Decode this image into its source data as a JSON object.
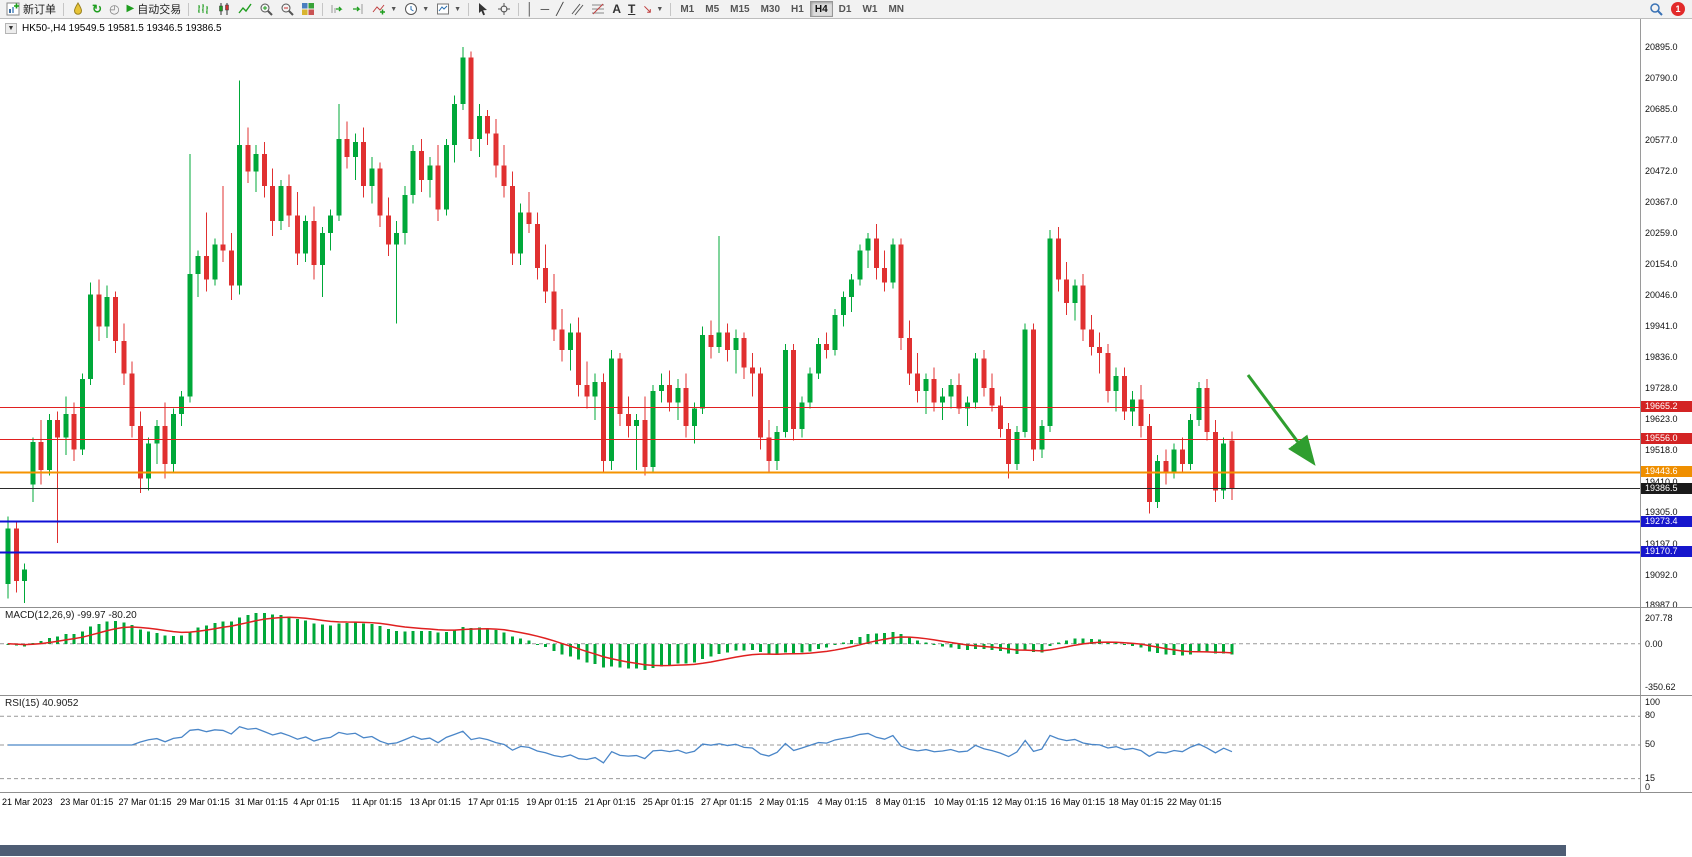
{
  "toolbar": {
    "new_order_label": "新订单",
    "autotrading_label": "自动交易",
    "timeframes": [
      "M1",
      "M5",
      "M15",
      "M30",
      "H1",
      "H4",
      "D1",
      "W1",
      "MN"
    ],
    "active_timeframe": "H4",
    "notification_count": "1"
  },
  "chart": {
    "symbol_ohlc": "HK50-,H4  19549.5 19581.5 19346.5 19386.5",
    "up_color": "#00a839",
    "down_color": "#e03030",
    "price_tags": [
      {
        "text": "19665.2",
        "value": 19665.2,
        "bg": "#d32424"
      },
      {
        "text": "19556.0",
        "value": 19556.0,
        "bg": "#d32424"
      },
      {
        "text": "19443.6",
        "value": 19443.6,
        "bg": "#ef8f00"
      },
      {
        "text": "19386.5",
        "value": 19386.5,
        "bg": "#1a1a1a"
      },
      {
        "text": "19273.4",
        "value": 19273.4,
        "bg": "#1616cc"
      },
      {
        "text": "19170.7",
        "value": 19170.7,
        "bg": "#1616cc"
      }
    ],
    "h_lines": [
      {
        "value": 19665.2,
        "color": "#e02020",
        "width": 1
      },
      {
        "value": 19556.0,
        "color": "#e02020",
        "width": 1
      },
      {
        "value": 19443.6,
        "color": "#f59300",
        "width": 2
      },
      {
        "value": 19386.5,
        "color": "#2a2a2a",
        "width": 1
      },
      {
        "value": 19273.4,
        "color": "#0f0fd6",
        "width": 2
      },
      {
        "value": 19170.7,
        "color": "#0f0fd6",
        "width": 2
      }
    ],
    "annotation_arrow": {
      "color": "#2f9e2f"
    }
  },
  "chart_data": {
    "type": "candlestick",
    "symbol": "HK50-",
    "timeframe": "H4",
    "current_ohlc": {
      "open": 19549.5,
      "high": 19581.5,
      "low": 19346.5,
      "close": 19386.5
    },
    "y_range": [
      18981,
      20991
    ],
    "y_ticks": [
      "20895.0",
      "20790.0",
      "20685.0",
      "20577.0",
      "20472.0",
      "20367.0",
      "20259.0",
      "20154.0",
      "20046.0",
      "19941.0",
      "19836.0",
      "19728.0",
      "19623.0",
      "19518.0",
      "19410.0",
      "19305.0",
      "19197.0",
      "19092.0",
      "18987.0"
    ],
    "x_labels": [
      "21 Mar 2023",
      "23 Mar 01:15",
      "27 Mar 01:15",
      "29 Mar 01:15",
      "31 Mar 01:15",
      "4 Apr 01:15",
      "11 Apr 01:15",
      "13 Apr 01:15",
      "17 Apr 01:15",
      "19 Apr 01:15",
      "21 Apr 01:15",
      "25 Apr 01:15",
      "27 Apr 01:15",
      "2 May 01:15",
      "4 May 01:15",
      "8 May 01:15",
      "10 May 01:15",
      "12 May 01:15",
      "16 May 01:15",
      "18 May 01:15",
      "22 May 01:15"
    ],
    "candles": [
      [
        19060,
        19290,
        19010,
        19250
      ],
      [
        19250,
        19270,
        19030,
        19070
      ],
      [
        19070,
        19130,
        18995,
        19110
      ],
      [
        19400,
        19560,
        19340,
        19545
      ],
      [
        19545,
        19620,
        19400,
        19450
      ],
      [
        19450,
        19640,
        19430,
        19620
      ],
      [
        19620,
        19650,
        19200,
        19560
      ],
      [
        19560,
        19700,
        19500,
        19640
      ],
      [
        19640,
        19680,
        19480,
        19520
      ],
      [
        19520,
        19780,
        19500,
        19760
      ],
      [
        19760,
        20090,
        19740,
        20050
      ],
      [
        20050,
        20100,
        19890,
        19940
      ],
      [
        19940,
        20080,
        19900,
        20040
      ],
      [
        20040,
        20060,
        19850,
        19890
      ],
      [
        19890,
        19950,
        19740,
        19780
      ],
      [
        19780,
        19820,
        19560,
        19600
      ],
      [
        19600,
        19650,
        19370,
        19420
      ],
      [
        19420,
        19560,
        19380,
        19540
      ],
      [
        19540,
        19620,
        19470,
        19600
      ],
      [
        19600,
        19680,
        19420,
        19470
      ],
      [
        19470,
        19660,
        19440,
        19640
      ],
      [
        19640,
        19720,
        19600,
        19700
      ],
      [
        19700,
        20530,
        19680,
        20120
      ],
      [
        20120,
        20200,
        20040,
        20180
      ],
      [
        20180,
        20330,
        20060,
        20100
      ],
      [
        20100,
        20240,
        20080,
        20220
      ],
      [
        20220,
        20420,
        20160,
        20200
      ],
      [
        20200,
        20260,
        20030,
        20080
      ],
      [
        20080,
        20780,
        20050,
        20560
      ],
      [
        20560,
        20620,
        20430,
        20470
      ],
      [
        20470,
        20560,
        20400,
        20530
      ],
      [
        20530,
        20570,
        20380,
        20420
      ],
      [
        20420,
        20480,
        20250,
        20300
      ],
      [
        20300,
        20440,
        20270,
        20420
      ],
      [
        20420,
        20460,
        20280,
        20320
      ],
      [
        20320,
        20400,
        20150,
        20190
      ],
      [
        20190,
        20320,
        20160,
        20300
      ],
      [
        20300,
        20350,
        20100,
        20150
      ],
      [
        20150,
        20280,
        20040,
        20260
      ],
      [
        20260,
        20340,
        20200,
        20320
      ],
      [
        20320,
        20700,
        20300,
        20580
      ],
      [
        20580,
        20640,
        20480,
        20520
      ],
      [
        20520,
        20600,
        20440,
        20570
      ],
      [
        20570,
        20620,
        20380,
        20420
      ],
      [
        20420,
        20520,
        20360,
        20480
      ],
      [
        20480,
        20500,
        20280,
        20320
      ],
      [
        20320,
        20380,
        20180,
        20220
      ],
      [
        20220,
        20300,
        19950,
        20260
      ],
      [
        20260,
        20420,
        20220,
        20390
      ],
      [
        20390,
        20560,
        20360,
        20540
      ],
      [
        20540,
        20580,
        20400,
        20440
      ],
      [
        20440,
        20520,
        20380,
        20490
      ],
      [
        20490,
        20560,
        20300,
        20340
      ],
      [
        20340,
        20580,
        20320,
        20560
      ],
      [
        20560,
        20730,
        20500,
        20700
      ],
      [
        20700,
        20895,
        20680,
        20860
      ],
      [
        20860,
        20880,
        20540,
        20580
      ],
      [
        20580,
        20700,
        20520,
        20660
      ],
      [
        20660,
        20680,
        20560,
        20600
      ],
      [
        20600,
        20650,
        20450,
        20490
      ],
      [
        20490,
        20560,
        20380,
        20420
      ],
      [
        20420,
        20470,
        20150,
        20190
      ],
      [
        20190,
        20360,
        20150,
        20330
      ],
      [
        20330,
        20400,
        20260,
        20290
      ],
      [
        20290,
        20330,
        20100,
        20140
      ],
      [
        20140,
        20220,
        20020,
        20060
      ],
      [
        20060,
        20120,
        19890,
        19930
      ],
      [
        19930,
        20000,
        19820,
        19860
      ],
      [
        19860,
        19950,
        19790,
        19920
      ],
      [
        19920,
        19970,
        19700,
        19740
      ],
      [
        19740,
        19820,
        19660,
        19700
      ],
      [
        19700,
        19780,
        19620,
        19750
      ],
      [
        19750,
        19780,
        19440,
        19480
      ],
      [
        19480,
        19860,
        19450,
        19830
      ],
      [
        19830,
        19850,
        19600,
        19640
      ],
      [
        19640,
        19700,
        19560,
        19600
      ],
      [
        19600,
        19640,
        19450,
        19620
      ],
      [
        19620,
        19700,
        19430,
        19460
      ],
      [
        19460,
        19740,
        19440,
        19720
      ],
      [
        19720,
        19780,
        19680,
        19740
      ],
      [
        19740,
        19790,
        19650,
        19680
      ],
      [
        19680,
        19760,
        19620,
        19730
      ],
      [
        19730,
        19780,
        19560,
        19600
      ],
      [
        19600,
        19680,
        19540,
        19660
      ],
      [
        19660,
        19940,
        19640,
        19910
      ],
      [
        19910,
        19960,
        19830,
        19870
      ],
      [
        19870,
        20250,
        19850,
        19920
      ],
      [
        19920,
        19950,
        19820,
        19860
      ],
      [
        19860,
        19930,
        19780,
        19900
      ],
      [
        19900,
        19920,
        19760,
        19800
      ],
      [
        19800,
        19850,
        19700,
        19780
      ],
      [
        19780,
        19800,
        19520,
        19560
      ],
      [
        19560,
        19620,
        19440,
        19480
      ],
      [
        19480,
        19600,
        19450,
        19580
      ],
      [
        19580,
        19880,
        19560,
        19860
      ],
      [
        19860,
        19880,
        19550,
        19590
      ],
      [
        19590,
        19700,
        19560,
        19680
      ],
      [
        19680,
        19800,
        19660,
        19780
      ],
      [
        19780,
        19900,
        19760,
        19880
      ],
      [
        19880,
        19920,
        19830,
        19860
      ],
      [
        19860,
        20000,
        19840,
        19980
      ],
      [
        19980,
        20060,
        19940,
        20040
      ],
      [
        20040,
        20120,
        19990,
        20100
      ],
      [
        20100,
        20220,
        20080,
        20200
      ],
      [
        20200,
        20260,
        20140,
        20240
      ],
      [
        20240,
        20290,
        20100,
        20140
      ],
      [
        20140,
        20200,
        20060,
        20090
      ],
      [
        20090,
        20240,
        20070,
        20220
      ],
      [
        20220,
        20240,
        19860,
        19900
      ],
      [
        19900,
        19960,
        19740,
        19780
      ],
      [
        19780,
        19850,
        19680,
        19720
      ],
      [
        19720,
        19780,
        19640,
        19760
      ],
      [
        19760,
        19800,
        19650,
        19680
      ],
      [
        19680,
        19730,
        19620,
        19700
      ],
      [
        19700,
        19760,
        19660,
        19740
      ],
      [
        19740,
        19780,
        19640,
        19660
      ],
      [
        19660,
        19700,
        19600,
        19680
      ],
      [
        19680,
        19850,
        19660,
        19830
      ],
      [
        19830,
        19860,
        19700,
        19730
      ],
      [
        19730,
        19780,
        19650,
        19670
      ],
      [
        19670,
        19700,
        19560,
        19590
      ],
      [
        19590,
        19610,
        19420,
        19470
      ],
      [
        19470,
        19600,
        19450,
        19580
      ],
      [
        19580,
        19950,
        19560,
        19930
      ],
      [
        19930,
        19950,
        19480,
        19520
      ],
      [
        19520,
        19620,
        19490,
        19600
      ],
      [
        19600,
        20270,
        19580,
        20240
      ],
      [
        20240,
        20280,
        20060,
        20100
      ],
      [
        20100,
        20160,
        19980,
        20020
      ],
      [
        20020,
        20100,
        19960,
        20080
      ],
      [
        20080,
        20120,
        19890,
        19930
      ],
      [
        19930,
        19980,
        19840,
        19870
      ],
      [
        19870,
        19920,
        19780,
        19850
      ],
      [
        19850,
        19880,
        19680,
        19720
      ],
      [
        19720,
        19800,
        19650,
        19770
      ],
      [
        19770,
        19800,
        19620,
        19650
      ],
      [
        19650,
        19720,
        19600,
        19690
      ],
      [
        19690,
        19740,
        19560,
        19600
      ],
      [
        19600,
        19640,
        19300,
        19340
      ],
      [
        19340,
        19500,
        19320,
        19480
      ],
      [
        19480,
        19520,
        19400,
        19440
      ],
      [
        19440,
        19540,
        19420,
        19520
      ],
      [
        19520,
        19560,
        19440,
        19470
      ],
      [
        19470,
        19640,
        19450,
        19620
      ],
      [
        19620,
        19750,
        19600,
        19730
      ],
      [
        19730,
        19760,
        19550,
        19580
      ],
      [
        19580,
        19620,
        19340,
        19380
      ],
      [
        19380,
        19560,
        19350,
        19540
      ],
      [
        19549.5,
        19581.5,
        19346.5,
        19386.5
      ]
    ],
    "indicators": [
      {
        "name": "MACD",
        "label": "MACD(12,26,9) -99.97 -80.20",
        "params": [
          12,
          26,
          9
        ],
        "current": [
          -99.97,
          -80.2
        ],
        "scale_ticks": [
          "207.78",
          "0.00",
          "-350.62"
        ],
        "y_range": [
          -420,
          280
        ],
        "histogram_color": "#00a839",
        "signal_color": "#e02020"
      },
      {
        "name": "RSI",
        "label": "RSI(15) 40.9052",
        "period": 15,
        "current": 40.9052,
        "scale_ticks": [
          "100",
          "80",
          "50",
          "15",
          "0"
        ],
        "levels": [
          80,
          50,
          15
        ],
        "y_range": [
          0,
          100
        ],
        "line_color": "#4a86c8"
      }
    ]
  }
}
